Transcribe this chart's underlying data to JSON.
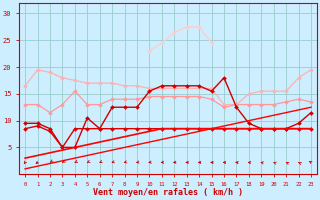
{
  "x": [
    0,
    1,
    2,
    3,
    4,
    5,
    6,
    7,
    8,
    9,
    10,
    11,
    12,
    13,
    14,
    15,
    16,
    17,
    18,
    19,
    20,
    21,
    22,
    23
  ],
  "series": [
    {
      "name": "light_pink_top",
      "color": "#ffb0b0",
      "marker": "D",
      "markersize": 2.0,
      "linewidth": 0.9,
      "y": [
        16.5,
        19.5,
        19.0,
        18.0,
        17.5,
        17.0,
        17.0,
        17.0,
        16.5,
        16.5,
        16.0,
        16.0,
        16.0,
        16.0,
        16.0,
        16.0,
        13.0,
        13.0,
        15.0,
        15.5,
        15.5,
        15.5,
        18.0,
        19.5
      ]
    },
    {
      "name": "light_pink_peak",
      "color": "#ffcccc",
      "marker": "D",
      "markersize": 2.0,
      "linewidth": 0.9,
      "y": [
        null,
        null,
        null,
        null,
        null,
        null,
        null,
        null,
        null,
        null,
        23.0,
        24.5,
        26.5,
        27.5,
        27.5,
        24.5,
        null,
        null,
        null,
        null,
        null,
        null,
        null,
        null
      ]
    },
    {
      "name": "pink_mid",
      "color": "#ff9999",
      "marker": "D",
      "markersize": 2.0,
      "linewidth": 0.9,
      "y": [
        13.0,
        13.0,
        11.5,
        13.0,
        15.5,
        13.0,
        13.0,
        14.0,
        14.0,
        14.0,
        14.5,
        14.5,
        14.5,
        14.5,
        14.5,
        14.0,
        12.5,
        13.0,
        13.0,
        13.0,
        13.0,
        13.5,
        14.0,
        13.5
      ]
    },
    {
      "name": "dark_red_volatile",
      "color": "#cc0000",
      "marker": "D",
      "markersize": 2.0,
      "linewidth": 1.0,
      "y": [
        9.5,
        9.5,
        8.5,
        5.0,
        5.0,
        10.5,
        8.5,
        12.5,
        12.5,
        12.5,
        15.5,
        16.5,
        16.5,
        16.5,
        16.5,
        15.5,
        18.0,
        12.5,
        9.5,
        8.5,
        8.5,
        8.5,
        9.5,
        11.5
      ]
    },
    {
      "name": "dark_red_stable",
      "color": "#dd0000",
      "marker": "D",
      "markersize": 2.0,
      "linewidth": 1.0,
      "y": [
        8.5,
        9.0,
        8.0,
        5.0,
        8.5,
        8.5,
        8.5,
        8.5,
        8.5,
        8.5,
        8.5,
        8.5,
        8.5,
        8.5,
        8.5,
        8.5,
        8.5,
        8.5,
        8.5,
        8.5,
        8.5,
        8.5,
        8.5,
        8.5
      ]
    },
    {
      "name": "red_diagonal",
      "color": "#ff0000",
      "marker": "none",
      "markersize": 0,
      "linewidth": 1.2,
      "y": [
        3.0,
        3.5,
        4.0,
        4.5,
        5.0,
        5.5,
        6.0,
        6.5,
        7.0,
        7.5,
        8.0,
        8.5,
        8.5,
        8.5,
        8.5,
        8.5,
        8.5,
        8.5,
        8.5,
        8.5,
        8.5,
        8.5,
        8.5,
        8.5
      ]
    },
    {
      "name": "red_rising_line",
      "color": "#ff0000",
      "marker": "none",
      "markersize": 0,
      "linewidth": 1.0,
      "y": [
        1.0,
        1.5,
        2.0,
        2.5,
        3.0,
        3.5,
        4.0,
        4.5,
        5.0,
        5.5,
        6.0,
        6.5,
        7.0,
        7.5,
        8.0,
        8.5,
        9.0,
        9.5,
        10.0,
        10.5,
        11.0,
        11.5,
        12.0,
        12.5
      ]
    }
  ],
  "xlim": [
    -0.5,
    23.5
  ],
  "ylim": [
    0,
    32
  ],
  "yticks": [
    5,
    10,
    15,
    20,
    25,
    30
  ],
  "xticks": [
    0,
    1,
    2,
    3,
    4,
    5,
    6,
    7,
    8,
    9,
    10,
    11,
    12,
    13,
    14,
    15,
    16,
    17,
    18,
    19,
    20,
    21,
    22,
    23
  ],
  "xlabel": "Vent moyen/en rafales ( km/h )",
  "bg_color": "#cceeff",
  "grid_color": "#99cccc",
  "axis_color": "#cc0000",
  "label_color": "#cc0000",
  "tick_color": "#cc0000",
  "arrow_angles": [
    200,
    210,
    215,
    220,
    225,
    225,
    230,
    235,
    240,
    245,
    250,
    255,
    260,
    265,
    270,
    275,
    280,
    285,
    290,
    300,
    310,
    315,
    320,
    330
  ]
}
